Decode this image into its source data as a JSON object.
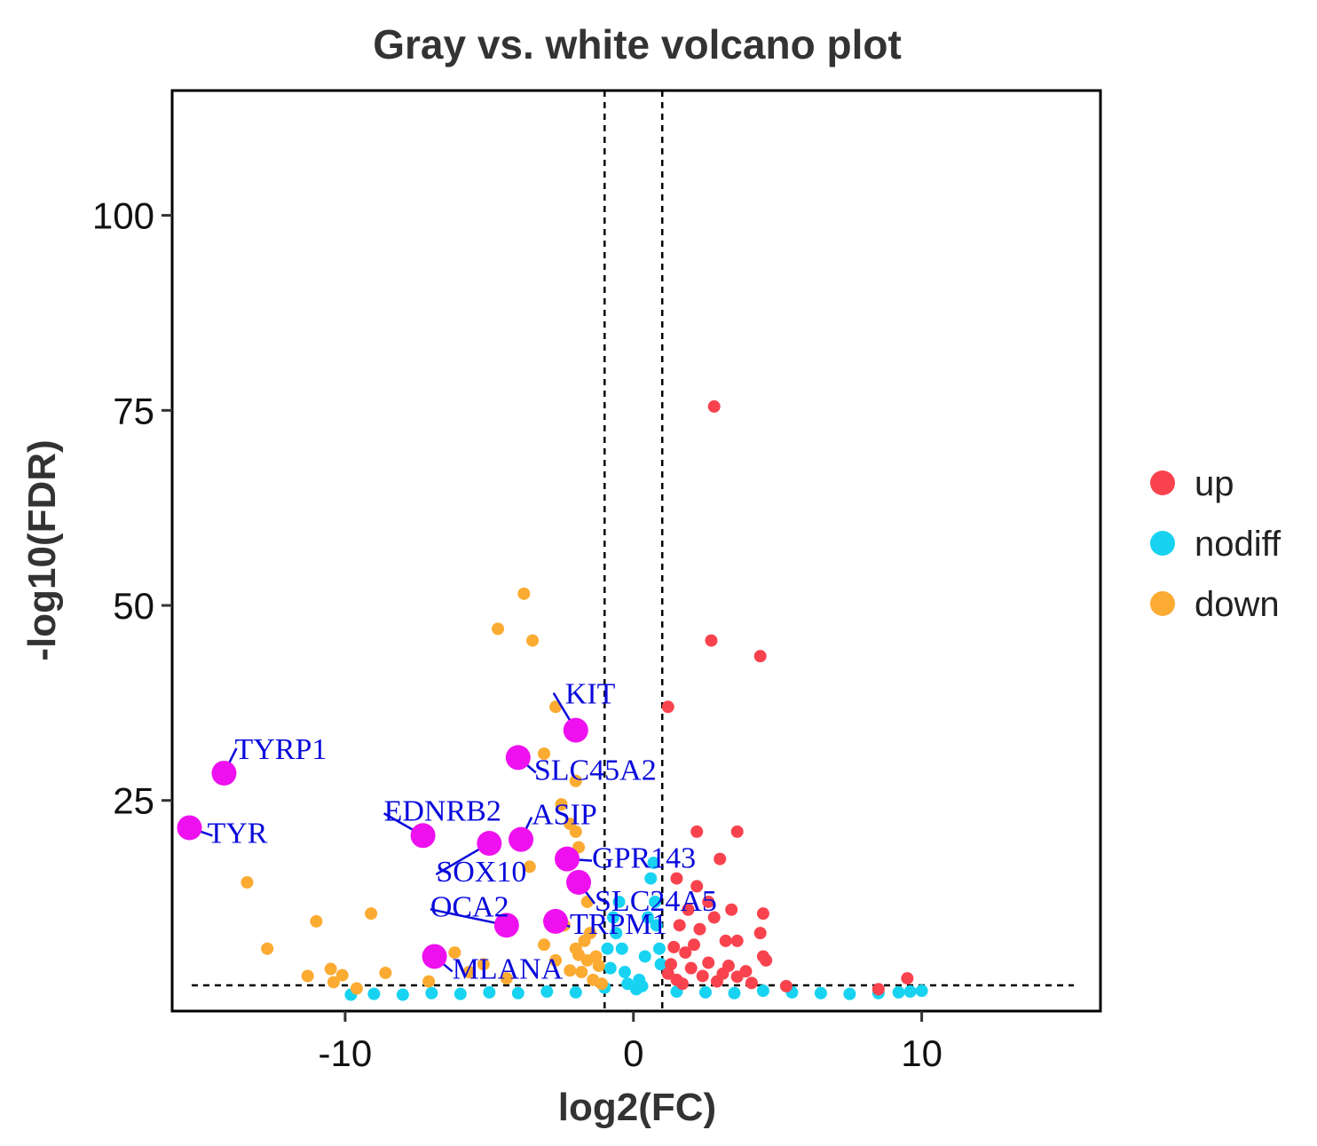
{
  "chart_data": {
    "type": "scatter",
    "title": "Gray vs. white volcano plot",
    "xlabel": "log2(FC)",
    "ylabel": "-log10(FDR)",
    "xlim": [
      -16,
      16.2
    ],
    "ylim": [
      -2,
      116
    ],
    "x_ticks": [
      {
        "value": -10,
        "label": "-10"
      },
      {
        "value": 0,
        "label": "0"
      },
      {
        "value": 10,
        "label": "10"
      }
    ],
    "y_ticks": [
      {
        "value": 25,
        "label": "25"
      },
      {
        "value": 50,
        "label": "50"
      },
      {
        "value": 75,
        "label": "75"
      },
      {
        "value": 100,
        "label": "100"
      }
    ],
    "thresholds": {
      "log2fc": [
        -1,
        1
      ],
      "neg_log10_fdr": 1.3
    },
    "grid": false,
    "legend_position": "right",
    "legend": [
      {
        "name": "up",
        "color": "#f8434f"
      },
      {
        "name": "nodiff",
        "color": "#17d3f1"
      },
      {
        "name": "down",
        "color": "#fbab32"
      }
    ],
    "colors": {
      "up": "#f8434f",
      "nodiff": "#17d3f1",
      "down": "#fbab32",
      "highlight": "#ee10ee",
      "label_text": "#0a0adc"
    },
    "series": [
      {
        "name": "up",
        "points": [
          [
            2.8,
            75.5
          ],
          [
            2.7,
            45.5
          ],
          [
            4.4,
            43.5
          ],
          [
            1.2,
            37
          ],
          [
            2.2,
            21
          ],
          [
            3.6,
            21
          ],
          [
            1.5,
            15
          ],
          [
            2.2,
            14
          ],
          [
            3.0,
            17.5
          ],
          [
            2.6,
            12
          ],
          [
            3.4,
            11
          ],
          [
            4.5,
            10.5
          ],
          [
            2.8,
            10
          ],
          [
            4.4,
            8
          ],
          [
            3.2,
            7
          ],
          [
            3.6,
            7
          ],
          [
            4.5,
            5
          ],
          [
            4.6,
            4.5
          ],
          [
            3.1,
            2.8
          ],
          [
            3.6,
            2.4
          ],
          [
            4.1,
            1.6
          ],
          [
            5.3,
            1.2
          ],
          [
            8.5,
            0.8
          ],
          [
            9.5,
            2.2
          ],
          [
            1.6,
            9
          ],
          [
            1.8,
            5.5
          ],
          [
            2.0,
            3.5
          ],
          [
            2.4,
            2.5
          ],
          [
            1.3,
            4
          ],
          [
            1.5,
            2
          ],
          [
            1.7,
            1.5
          ],
          [
            2.1,
            6.5
          ],
          [
            2.6,
            4.2
          ],
          [
            1.9,
            11
          ],
          [
            2.3,
            8.5
          ],
          [
            3.3,
            3.8
          ],
          [
            1.4,
            6.2
          ],
          [
            2.9,
            1.8
          ],
          [
            3.9,
            3.1
          ],
          [
            1.2,
            2.8
          ]
        ]
      },
      {
        "name": "down",
        "points": [
          [
            -3.8,
            51.5
          ],
          [
            -4.7,
            47
          ],
          [
            -3.5,
            45.5
          ],
          [
            -2.7,
            37
          ],
          [
            -3.1,
            31
          ],
          [
            -2.0,
            27.5
          ],
          [
            -2.5,
            24.5
          ],
          [
            -2.2,
            22
          ],
          [
            -2.0,
            21
          ],
          [
            -3.6,
            16.5
          ],
          [
            -1.9,
            19
          ],
          [
            -13.4,
            14.5
          ],
          [
            -11.0,
            9.5
          ],
          [
            -9.1,
            10.5
          ],
          [
            -12.7,
            6
          ],
          [
            -11.3,
            2.5
          ],
          [
            -10.1,
            2.6
          ],
          [
            -10.4,
            1.7
          ],
          [
            -9.6,
            0.9
          ],
          [
            -8.6,
            2.9
          ],
          [
            -7.1,
            1.8
          ],
          [
            -6.2,
            5.5
          ],
          [
            -5.7,
            3
          ],
          [
            -5.2,
            4
          ],
          [
            -3.1,
            6.5
          ],
          [
            -2.7,
            4.5
          ],
          [
            -2.4,
            9
          ],
          [
            -1.6,
            12
          ],
          [
            -1.5,
            8
          ],
          [
            -2.0,
            6
          ],
          [
            -1.3,
            5
          ],
          [
            -1.8,
            3
          ],
          [
            -1.4,
            2
          ],
          [
            -1.2,
            3.8
          ],
          [
            -1.7,
            7
          ],
          [
            -1.1,
            1.5
          ],
          [
            -2.2,
            3.2
          ],
          [
            -1.6,
            4.5
          ],
          [
            -4.4,
            2.2
          ],
          [
            -1.9,
            5.2
          ],
          [
            -10.5,
            3.4
          ]
        ]
      },
      {
        "name": "nodiff",
        "points": [
          [
            -9.8,
            0.1
          ],
          [
            -9.0,
            0.2
          ],
          [
            -8.0,
            0.1
          ],
          [
            -7.0,
            0.3
          ],
          [
            -6.0,
            0.2
          ],
          [
            -5.0,
            0.4
          ],
          [
            -4.0,
            0.3
          ],
          [
            -3.0,
            0.5
          ],
          [
            -2.0,
            0.4
          ],
          [
            -1.0,
            1.0
          ],
          [
            -0.8,
            3.5
          ],
          [
            -0.6,
            8
          ],
          [
            -0.9,
            6
          ],
          [
            -0.5,
            12
          ],
          [
            -0.4,
            6
          ],
          [
            -0.3,
            3
          ],
          [
            0.2,
            2
          ],
          [
            0.4,
            5
          ],
          [
            0.5,
            10
          ],
          [
            0.6,
            15
          ],
          [
            0.7,
            17
          ],
          [
            0.75,
            12
          ],
          [
            0.8,
            9
          ],
          [
            0.9,
            6
          ],
          [
            0.95,
            4
          ],
          [
            0.3,
            1.2
          ],
          [
            1.5,
            0.5
          ],
          [
            2.5,
            0.4
          ],
          [
            3.5,
            0.3
          ],
          [
            4.5,
            0.6
          ],
          [
            5.5,
            0.4
          ],
          [
            6.5,
            0.3
          ],
          [
            7.5,
            0.2
          ],
          [
            8.5,
            0.3
          ],
          [
            9.2,
            0.4
          ],
          [
            9.6,
            0.5
          ],
          [
            10.0,
            0.6
          ],
          [
            -0.7,
            10
          ],
          [
            -0.2,
            1.5
          ],
          [
            0.1,
            0.8
          ]
        ]
      }
    ],
    "labeled_genes": [
      {
        "gene": "KIT",
        "x": -2.0,
        "y": 34
      },
      {
        "gene": "TYRP1",
        "x": -14.2,
        "y": 28.5
      },
      {
        "gene": "SLC45A2",
        "x": -4.0,
        "y": 30.5
      },
      {
        "gene": "TYR",
        "x": -15.4,
        "y": 21.5
      },
      {
        "gene": "EDNRB2",
        "x": -7.3,
        "y": 20.5
      },
      {
        "gene": "ASIP",
        "x": -3.9,
        "y": 20
      },
      {
        "gene": "SOX10",
        "x": -5.0,
        "y": 19.5
      },
      {
        "gene": "GPR143",
        "x": -2.3,
        "y": 17.5
      },
      {
        "gene": "SLC24A5",
        "x": -1.9,
        "y": 14.5
      },
      {
        "gene": "OCA2",
        "x": -4.4,
        "y": 9
      },
      {
        "gene": "TRPM1",
        "x": -2.7,
        "y": 9.5
      },
      {
        "gene": "MLANA",
        "x": -6.9,
        "y": 5
      }
    ]
  }
}
